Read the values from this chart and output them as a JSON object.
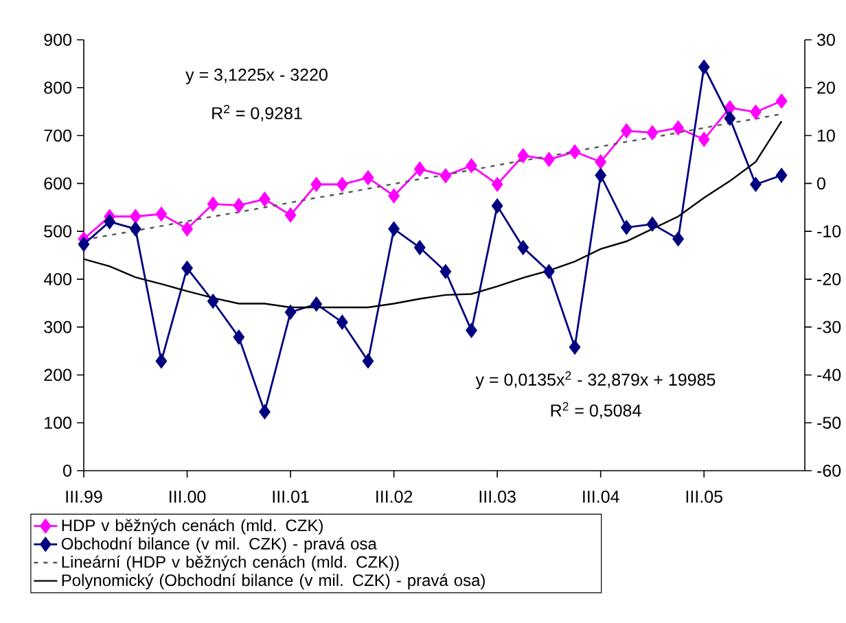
{
  "chart_data": {
    "type": "line",
    "categories": [
      "III.99",
      null,
      null,
      null,
      "III.00",
      null,
      null,
      null,
      "III.01",
      null,
      null,
      null,
      "III.02",
      null,
      null,
      null,
      "III.03",
      null,
      null,
      null,
      "III.04",
      null,
      null,
      null,
      "III.05",
      null,
      null,
      null
    ],
    "series": [
      {
        "name": "HDP v běžných cenách (mld. CZK)",
        "color": "#ff00ff",
        "marker": "diamond",
        "line_style": "solid",
        "axis": "y",
        "values": [
          484,
          531,
          531,
          536,
          505,
          557,
          554,
          567,
          534,
          598,
          598,
          612,
          574,
          630,
          616,
          637,
          598,
          658,
          650,
          666,
          645,
          710,
          706,
          716,
          692,
          758,
          749,
          772
        ]
      },
      {
        "name": "Obchodní bilance (v mil. CZK) - pravá osa",
        "color": "#000080",
        "marker": "diamond",
        "line_style": "solid",
        "axis": "y2",
        "values": [
          -12.7,
          -8.0,
          -9.5,
          -37.1,
          -17.7,
          -24.6,
          -32.1,
          -47.7,
          -26.9,
          -25.2,
          -29.0,
          -37.1,
          -9.5,
          -13.4,
          -18.4,
          -30.7,
          -4.7,
          -13.4,
          -18.4,
          -34.2,
          1.7,
          -9.2,
          -8.5,
          -11.6,
          24.3,
          13.6,
          -0.2,
          1.7
        ]
      },
      {
        "name": "Lineární (HDP v běžných cenách (mld. CZK))",
        "type": "line",
        "color": "#555555",
        "marker": "none",
        "line_style": "dashed",
        "axis": "y",
        "values": [
          482,
          492,
          501,
          511,
          521,
          531,
          540,
          550,
          560,
          570,
          579,
          589,
          599,
          609,
          618,
          628,
          638,
          648,
          657,
          667,
          677,
          687,
          696,
          706,
          716,
          726,
          735,
          745
        ]
      },
      {
        "name": "Polynomický (Obchodní bilance (v mil. CZK) - pravá osa)",
        "type": "line",
        "color": "#000000",
        "marker": "none",
        "line_style": "solid",
        "axis": "y2",
        "values": [
          -15.8,
          -17.3,
          -19.6,
          -21.0,
          -22.5,
          -23.9,
          -25.1,
          -25.1,
          -25.9,
          -25.9,
          -25.9,
          -25.9,
          -25.1,
          -24.1,
          -23.3,
          -23.1,
          -21.5,
          -19.7,
          -18.2,
          -16.3,
          -13.7,
          -12.1,
          -9.5,
          -6.9,
          -3.0,
          0.5,
          4.5,
          13.0
        ]
      }
    ],
    "ylim": [
      0,
      900
    ],
    "yticks": [
      0,
      100,
      200,
      300,
      400,
      500,
      600,
      700,
      800,
      900
    ],
    "y2lim": [
      -60,
      30
    ],
    "y2ticks": [
      -60,
      -50,
      -40,
      -30,
      -20,
      -10,
      0,
      10,
      20,
      30
    ],
    "annotations": [
      "y = 3,1225x - 3220",
      "R$^{2}$ = 0,9281",
      "y = 0,0135x$^{2}$ - 32,879x + 19985",
      "R$^{2}$ = 0,5084"
    ],
    "legend": "bottom",
    "grid": false
  }
}
